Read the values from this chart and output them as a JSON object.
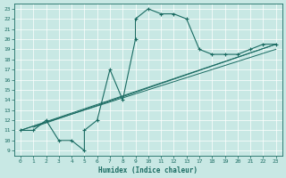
{
  "xlabel": "Humidex (Indice chaleur)",
  "ylabel": "",
  "bg_color": "#c8e8e4",
  "line_color": "#1a6b62",
  "grid_color": "#b0d8d4",
  "bg_grid_color": "#c8e8e4",
  "xlim": [
    -0.5,
    20.5
  ],
  "ylim": [
    8.5,
    23.5
  ],
  "yticks_vals": [
    9,
    10,
    11,
    12,
    13,
    14,
    15,
    16,
    17,
    18,
    19,
    20,
    21,
    22,
    23
  ],
  "xtick_positions": [
    0,
    1,
    2,
    3,
    4,
    5,
    6,
    7,
    8,
    9,
    10,
    11,
    12,
    13,
    14,
    15,
    16,
    17,
    18,
    19,
    20
  ],
  "xtick_labels": [
    "0",
    "1",
    "2",
    "3",
    "4",
    "5",
    "6",
    "7",
    "8",
    "9",
    "10",
    "11",
    "12",
    "13",
    "17",
    "18",
    "19",
    "20",
    "21",
    "22",
    "23"
  ],
  "main_line_pos": [
    0,
    1,
    2,
    3,
    4,
    5,
    5,
    6,
    7,
    8,
    9,
    9,
    10,
    11,
    12,
    13,
    14,
    15,
    16,
    17,
    18,
    19,
    20
  ],
  "main_line_y": [
    11,
    11,
    12,
    10,
    10,
    9,
    11,
    12,
    17,
    14,
    20,
    22,
    23,
    22.5,
    22.5,
    22,
    19,
    18.5,
    18.5,
    18.5,
    19,
    19.5,
    19.5
  ],
  "diag_line1_x": [
    0,
    20
  ],
  "diag_line1_y": [
    11,
    19.5
  ],
  "diag_line2_x": [
    0,
    20
  ],
  "diag_line2_y": [
    11,
    19.0
  ],
  "diag_line3_x": [
    1,
    20
  ],
  "diag_line3_y": [
    11.3,
    19.5
  ]
}
